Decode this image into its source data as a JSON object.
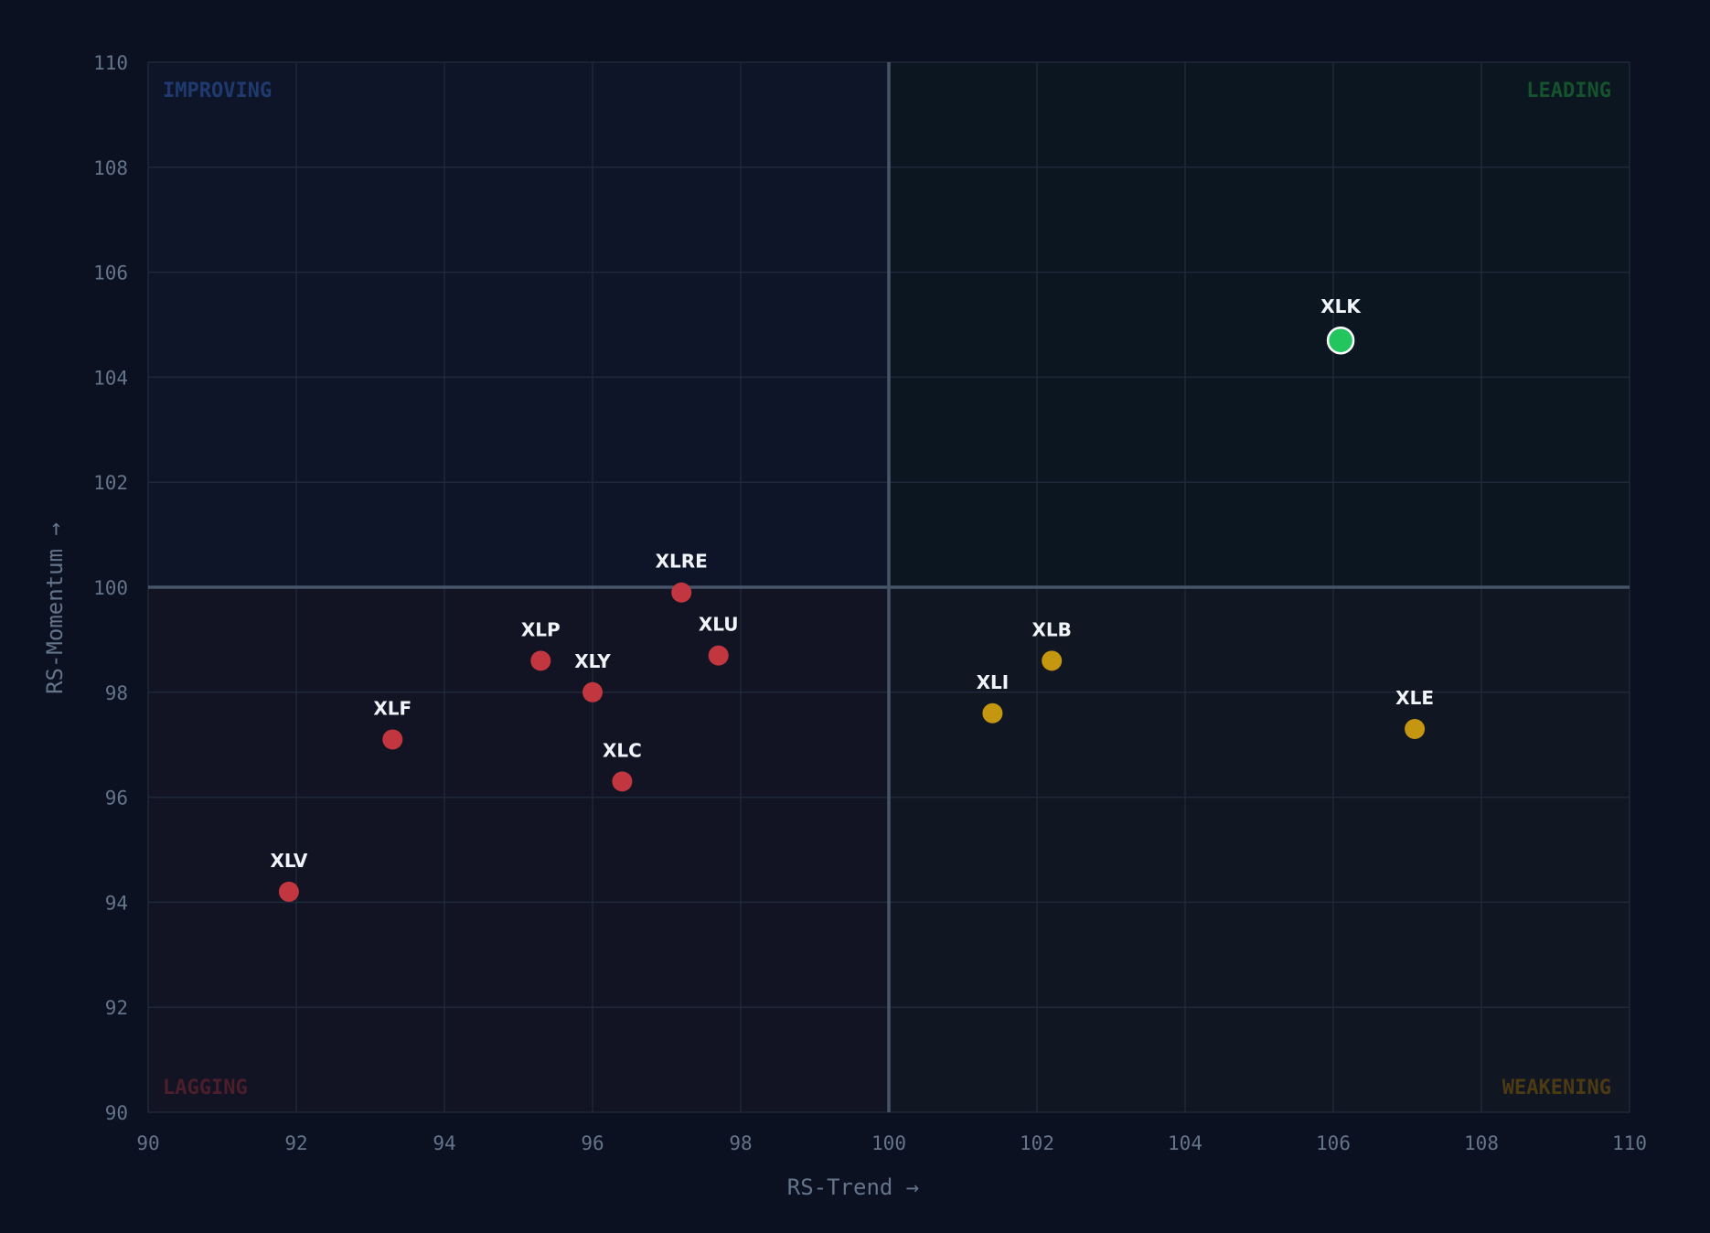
{
  "chart_data": {
    "type": "scatter",
    "xlabel": "RS-Trend →",
    "ylabel": "RS-Momentum →",
    "xlim": [
      90,
      110
    ],
    "ylim": [
      90,
      110
    ],
    "x_ticks": [
      90,
      92,
      94,
      96,
      98,
      100,
      102,
      104,
      106,
      108,
      110
    ],
    "y_ticks": [
      90,
      92,
      94,
      96,
      98,
      100,
      102,
      104,
      106,
      108,
      110
    ],
    "grid": true,
    "center": [
      100,
      100
    ],
    "quadrants": [
      {
        "name": "improving",
        "label": "IMPROVING",
        "position": "top-left",
        "fill": "#0e1529",
        "text_color": "#1e3a6e"
      },
      {
        "name": "leading",
        "label": "LEADING",
        "position": "top-right",
        "fill": "#0c1620",
        "text_color": "#14532d"
      },
      {
        "name": "lagging",
        "label": "LAGGING",
        "position": "bottom-left",
        "fill": "#121424",
        "text_color": "#4c1d2a"
      },
      {
        "name": "weakening",
        "label": "WEAKENING",
        "position": "bottom-right",
        "fill": "#101722",
        "text_color": "#4d3a12"
      }
    ],
    "points": [
      {
        "label": "XLK",
        "x": 106.1,
        "y": 104.7,
        "quadrant": "leading",
        "color": "#22c55e",
        "highlight": true
      },
      {
        "label": "XLRE",
        "x": 97.2,
        "y": 99.9,
        "quadrant": "lagging",
        "color": "#c2363f"
      },
      {
        "label": "XLU",
        "x": 97.7,
        "y": 98.7,
        "quadrant": "lagging",
        "color": "#c2363f"
      },
      {
        "label": "XLP",
        "x": 95.3,
        "y": 98.6,
        "quadrant": "lagging",
        "color": "#c2363f"
      },
      {
        "label": "XLY",
        "x": 96.0,
        "y": 98.0,
        "quadrant": "lagging",
        "color": "#c2363f"
      },
      {
        "label": "XLF",
        "x": 93.3,
        "y": 97.1,
        "quadrant": "lagging",
        "color": "#c2363f"
      },
      {
        "label": "XLC",
        "x": 96.4,
        "y": 96.3,
        "quadrant": "lagging",
        "color": "#c2363f"
      },
      {
        "label": "XLV",
        "x": 91.9,
        "y": 94.2,
        "quadrant": "lagging",
        "color": "#c2363f"
      },
      {
        "label": "XLB",
        "x": 102.2,
        "y": 98.6,
        "quadrant": "weakening",
        "color": "#c5960f"
      },
      {
        "label": "XLI",
        "x": 101.4,
        "y": 97.6,
        "quadrant": "weakening",
        "color": "#c5960f"
      },
      {
        "label": "XLE",
        "x": 107.1,
        "y": 97.3,
        "quadrant": "weakening",
        "color": "#c5960f"
      }
    ],
    "colors": {
      "background": "#0b1120",
      "grid": "#1e2838",
      "center_lines": "#475569",
      "ticks": "#64748b",
      "point_labels": "#f1f5f9",
      "highlight_stroke": "#ffffff"
    }
  }
}
